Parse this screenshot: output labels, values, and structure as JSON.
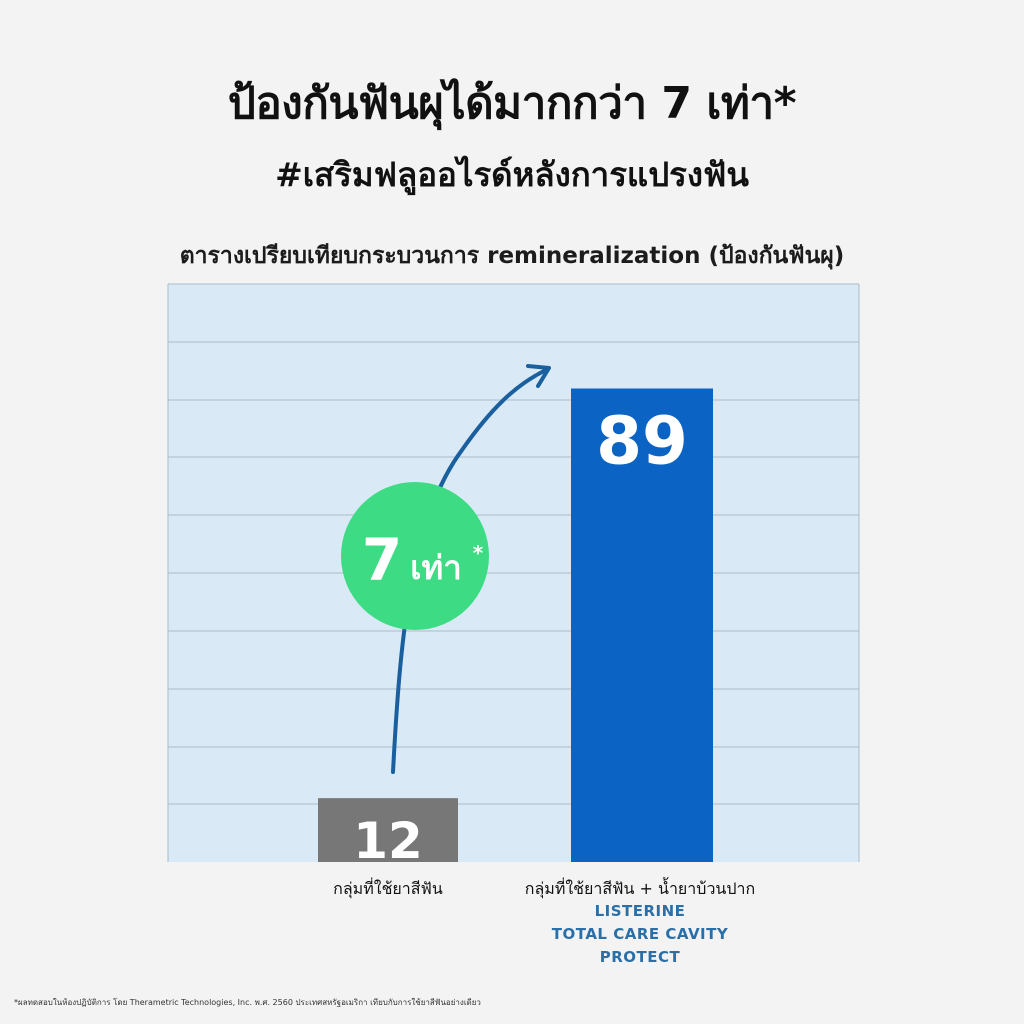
{
  "header": {
    "title": "ป้องกันฟันผุได้มากกว่า 7 เท่า*",
    "subtitle": "#เสริมฟลูออไรด์หลังการแปรงฟัน"
  },
  "chart_data": {
    "type": "bar",
    "title": "ตารางเปรียบเทียบกระบวนการ remineralization (ป้องกันฟันผุ)",
    "categories": [
      "กลุ่มที่ใช้ยาสีฟัน",
      "กลุ่มที่ใช้ยาสีฟัน + น้ำยาบ้วนปาก"
    ],
    "values": [
      12,
      89
    ],
    "bar_colors": [
      "#777777",
      "#0b63c4"
    ],
    "ylim": [
      0,
      100
    ],
    "grid": true,
    "annotation": {
      "number": "7",
      "unit": "เท่า",
      "mark": "*",
      "color": "#3ddc84",
      "arrow_color": "#1a5f9e"
    },
    "brand_lines": [
      "LISTERINE",
      "TOTAL CARE CAVITY",
      "PROTECT"
    ]
  },
  "colors": {
    "background": "#f3f3f3",
    "plot_bg": "#d9e9f5",
    "grid": "#a9bccb",
    "brand_text": "#2a6fa8"
  },
  "footnote": "*ผลทดสอบในห้องปฏิบัติการ โดย Therametric Technologies, Inc. พ.ศ. 2560 ประเทศสหรัฐอเมริกา เทียบกับการใช้ยาสีฟันอย่างเดียว"
}
